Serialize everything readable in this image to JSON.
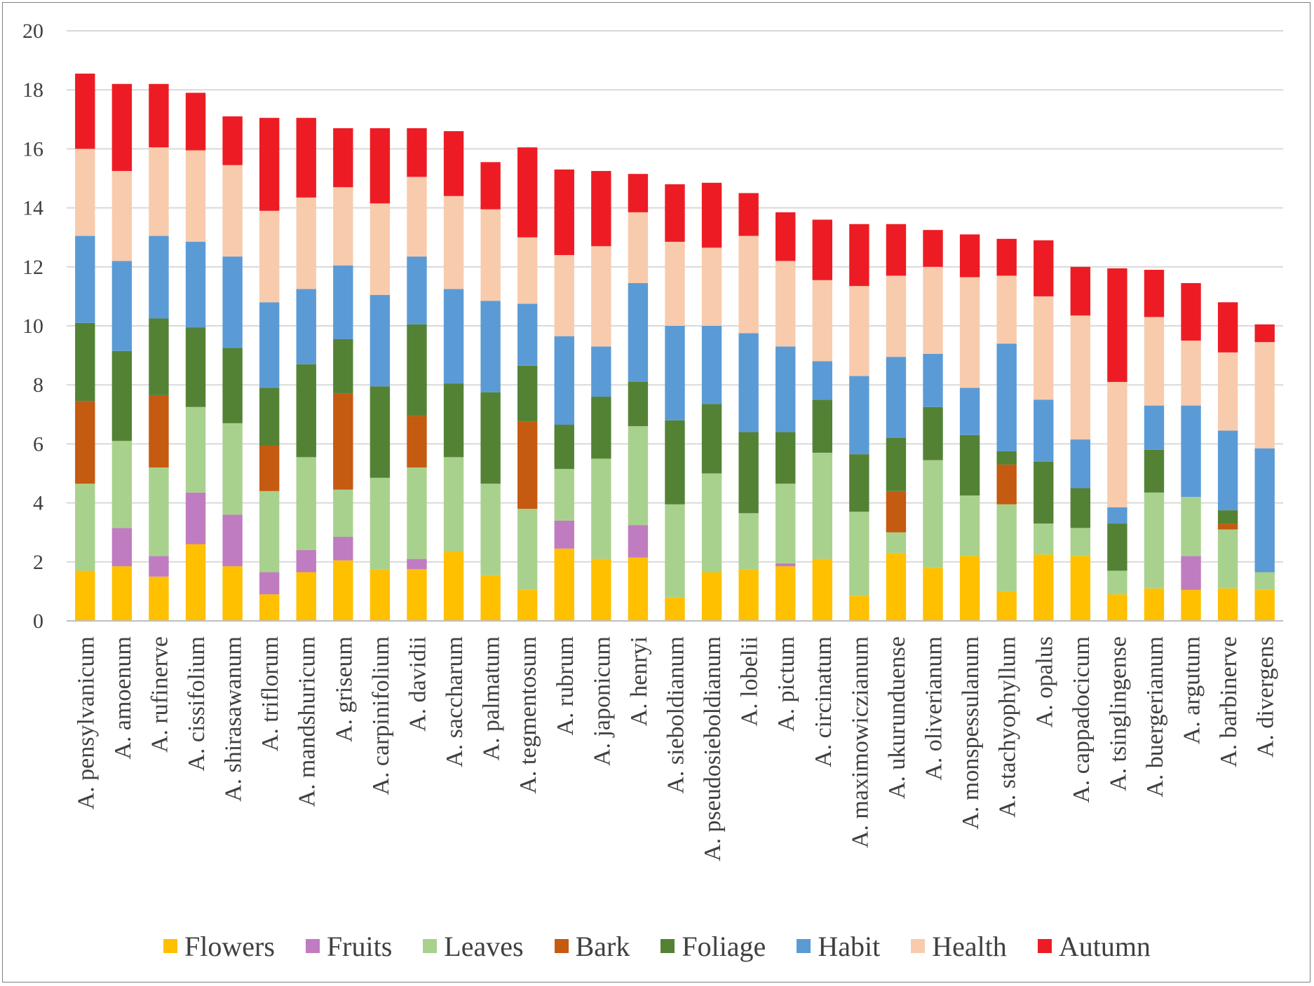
{
  "chart_data": {
    "type": "bar",
    "stacked": true,
    "title": "",
    "xlabel": "",
    "ylabel": "",
    "ylim": [
      0,
      20
    ],
    "yticks": [
      "0",
      "2",
      "4",
      "6",
      "8",
      "10",
      "12",
      "14",
      "16",
      "18",
      "20"
    ],
    "grid": true,
    "legend_position": "bottom",
    "categories": [
      "A. pensylvanicum",
      "A. amoenum",
      "A. rufinerve",
      "A. cissifolium",
      "A. shirasawanum",
      "A. triflorum",
      "A. mandshuricum",
      "A. griseum",
      "A. carpinifolium",
      "A. davidii",
      "A. saccharum",
      "A. palmatum",
      "A. tegmentosum",
      "A. rubrum",
      "A. japonicum",
      "A. henryi",
      "A. sieboldianum",
      "A. pseudosieboldianum",
      "A. lobelii",
      "A. pictum",
      "A. circinatum",
      "A. maximowiczianum",
      "A. ukurunduense",
      "A. oliverianum",
      "A. monspessulanum",
      "A. stachyophyllum",
      "A. opalus",
      "A. cappadocicum",
      "A. tsinglingense",
      "A. buergerianum",
      "A. argutum",
      "A. barbinerve",
      "A. divergens"
    ],
    "series": [
      {
        "name": "Flowers",
        "color": "#FFC000",
        "values": [
          1.7,
          1.85,
          1.5,
          2.6,
          1.85,
          0.9,
          1.65,
          2.05,
          1.75,
          1.75,
          2.35,
          1.55,
          1.05,
          2.45,
          2.1,
          2.15,
          0.8,
          1.65,
          1.75,
          1.85,
          2.1,
          0.85,
          2.3,
          1.8,
          2.2,
          1.0,
          2.25,
          2.2,
          0.9,
          1.1,
          1.05,
          1.1,
          1.05
        ]
      },
      {
        "name": "Fruits",
        "color": "#C07CC0",
        "values": [
          0,
          1.3,
          0.7,
          1.75,
          1.75,
          0.75,
          0.75,
          0.8,
          0,
          0.35,
          0,
          0,
          0,
          0.95,
          0,
          1.1,
          0,
          0,
          0,
          0.1,
          0,
          0,
          0,
          0,
          0,
          0,
          0,
          0,
          0,
          0,
          1.15,
          0,
          0
        ]
      },
      {
        "name": "Leaves",
        "color": "#A9D18E",
        "values": [
          2.95,
          2.95,
          3.0,
          2.9,
          3.1,
          2.75,
          3.15,
          1.6,
          3.1,
          3.1,
          3.2,
          3.1,
          2.75,
          1.75,
          3.4,
          3.35,
          3.15,
          3.35,
          1.9,
          2.7,
          3.6,
          2.85,
          0.7,
          3.65,
          2.05,
          2.95,
          1.05,
          0.95,
          0.8,
          3.25,
          2.0,
          2.0,
          0.6
        ]
      },
      {
        "name": "Bark",
        "color": "#C55A11",
        "values": [
          2.8,
          0,
          2.45,
          0,
          0,
          1.55,
          0,
          3.25,
          0,
          1.75,
          0,
          0,
          2.95,
          0,
          0,
          0,
          0,
          0,
          0,
          0,
          0,
          0,
          1.4,
          0,
          0,
          1.35,
          0,
          0,
          0,
          0,
          0,
          0.2,
          0
        ]
      },
      {
        "name": "Foliage",
        "color": "#548235",
        "values": [
          2.65,
          3.05,
          2.6,
          2.7,
          2.55,
          1.95,
          3.15,
          1.85,
          3.1,
          3.1,
          2.5,
          3.1,
          1.9,
          1.5,
          2.1,
          1.5,
          2.85,
          2.35,
          2.75,
          1.75,
          1.8,
          1.95,
          1.8,
          1.8,
          2.05,
          0.45,
          2.1,
          1.35,
          1.6,
          1.45,
          0,
          0.45,
          0
        ]
      },
      {
        "name": "Habit",
        "color": "#5B9BD5",
        "values": [
          2.95,
          3.05,
          2.8,
          2.9,
          3.1,
          2.9,
          2.55,
          2.5,
          3.1,
          2.3,
          3.2,
          3.1,
          2.1,
          3.0,
          1.7,
          3.35,
          3.2,
          2.65,
          3.35,
          2.9,
          1.3,
          2.65,
          2.75,
          1.8,
          1.6,
          3.65,
          2.1,
          1.65,
          0.55,
          1.5,
          3.1,
          2.7,
          4.2
        ]
      },
      {
        "name": "Health",
        "color": "#F8CBAD",
        "values": [
          2.95,
          3.05,
          3.0,
          3.1,
          3.1,
          3.1,
          3.1,
          2.65,
          3.1,
          2.7,
          3.15,
          3.1,
          2.25,
          2.75,
          3.4,
          2.4,
          2.85,
          2.65,
          3.3,
          2.9,
          2.75,
          3.05,
          2.75,
          2.95,
          3.75,
          2.3,
          3.5,
          4.2,
          4.25,
          3.0,
          2.2,
          2.65,
          3.6
        ]
      },
      {
        "name": "Autumn",
        "color": "#ED1C24",
        "values": [
          2.55,
          2.95,
          2.15,
          1.95,
          1.65,
          3.15,
          2.7,
          2.0,
          2.55,
          1.65,
          2.2,
          1.6,
          3.05,
          2.9,
          2.55,
          1.3,
          1.95,
          2.2,
          1.45,
          1.65,
          2.05,
          2.1,
          1.75,
          1.25,
          1.45,
          1.25,
          1.9,
          1.65,
          3.85,
          1.6,
          1.95,
          1.7,
          0.6
        ]
      }
    ]
  }
}
